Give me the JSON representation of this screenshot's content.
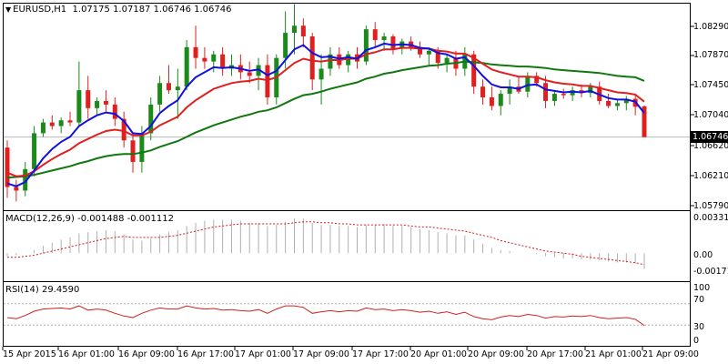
{
  "header": {
    "title": "EURUSD,H1",
    "ohlc": "1.07175 1.07187 1.06746 1.06746"
  },
  "price_axis": {
    "labels": [
      "1.08290",
      "1.07870",
      "1.07450",
      "1.07040",
      "1.06620",
      "1.06210",
      "1.05790"
    ],
    "current_price": "1.06746"
  },
  "macd": {
    "title": "MACD(12,26,9) -0.001488 -0.001112",
    "labels": [
      "0.003318",
      "0.00",
      "-0.001717"
    ]
  },
  "rsi": {
    "title": "RSI(14) 29.4590",
    "labels": [
      "100",
      "70",
      "30",
      "0"
    ]
  },
  "time_axis": {
    "labels": [
      "15 Apr 2015",
      "16 Apr 01:00",
      "16 Apr 09:00",
      "16 Apr 17:00",
      "17 Apr 01:00",
      "17 Apr 09:00",
      "17 Apr 17:00",
      "20 Apr 01:00",
      "20 Apr 09:00",
      "20 Apr 17:00",
      "21 Apr 01:00",
      "21 Apr 09:00"
    ]
  },
  "colors": {
    "bull_candle": "#1a8a1a",
    "bear_candle": "#e0201f",
    "ma_blue": "#1010e0",
    "ma_red": "#e02020",
    "ma_green": "#117711",
    "ma_thin": "#22aa22",
    "macd_hist": "#b0b0b0",
    "macd_signal": "#d02020",
    "rsi_line": "#d02020"
  },
  "chart_data": {
    "type": "candlestick",
    "symbol": "EURUSD",
    "timeframe": "H1",
    "candles": [
      {
        "o": 1.066,
        "h": 1.067,
        "l": 1.059,
        "c": 1.0605
      },
      {
        "o": 1.0605,
        "h": 1.0615,
        "l": 1.0585,
        "c": 1.06
      },
      {
        "o": 1.06,
        "h": 1.064,
        "l": 1.0592,
        "c": 1.063
      },
      {
        "o": 1.063,
        "h": 1.069,
        "l": 1.062,
        "c": 1.068
      },
      {
        "o": 1.068,
        "h": 1.07,
        "l": 1.0675,
        "c": 1.0695
      },
      {
        "o": 1.0695,
        "h": 1.0705,
        "l": 1.0685,
        "c": 1.069
      },
      {
        "o": 1.069,
        "h": 1.0702,
        "l": 1.068,
        "c": 1.0698
      },
      {
        "o": 1.0698,
        "h": 1.071,
        "l": 1.069,
        "c": 1.0695
      },
      {
        "o": 1.0695,
        "h": 1.078,
        "l": 1.069,
        "c": 1.074
      },
      {
        "o": 1.074,
        "h": 1.076,
        "l": 1.07,
        "c": 1.0715
      },
      {
        "o": 1.0715,
        "h": 1.073,
        "l": 1.0705,
        "c": 1.0725
      },
      {
        "o": 1.0725,
        "h": 1.074,
        "l": 1.071,
        "c": 1.072
      },
      {
        "o": 1.072,
        "h": 1.073,
        "l": 1.069,
        "c": 1.07
      },
      {
        "o": 1.07,
        "h": 1.071,
        "l": 1.066,
        "c": 1.067
      },
      {
        "o": 1.067,
        "h": 1.068,
        "l": 1.0625,
        "c": 1.064
      },
      {
        "o": 1.064,
        "h": 1.069,
        "l": 1.0625,
        "c": 1.068
      },
      {
        "o": 1.068,
        "h": 1.073,
        "l": 1.067,
        "c": 1.072
      },
      {
        "o": 1.072,
        "h": 1.076,
        "l": 1.071,
        "c": 1.075
      },
      {
        "o": 1.075,
        "h": 1.0775,
        "l": 1.0735,
        "c": 1.074
      },
      {
        "o": 1.074,
        "h": 1.077,
        "l": 1.07,
        "c": 1.0745
      },
      {
        "o": 1.0745,
        "h": 1.081,
        "l": 1.074,
        "c": 1.08
      },
      {
        "o": 1.08,
        "h": 1.083,
        "l": 1.077,
        "c": 1.0785
      },
      {
        "o": 1.0785,
        "h": 1.08,
        "l": 1.077,
        "c": 1.078
      },
      {
        "o": 1.078,
        "h": 1.0795,
        "l": 1.0765,
        "c": 1.079
      },
      {
        "o": 1.079,
        "h": 1.08,
        "l": 1.076,
        "c": 1.077
      },
      {
        "o": 1.077,
        "h": 1.079,
        "l": 1.076,
        "c": 1.0775
      },
      {
        "o": 1.0775,
        "h": 1.079,
        "l": 1.0755,
        "c": 1.0765
      },
      {
        "o": 1.0765,
        "h": 1.078,
        "l": 1.075,
        "c": 1.076
      },
      {
        "o": 1.076,
        "h": 1.0785,
        "l": 1.074,
        "c": 1.0775
      },
      {
        "o": 1.0775,
        "h": 1.079,
        "l": 1.072,
        "c": 1.073
      },
      {
        "o": 1.073,
        "h": 1.079,
        "l": 1.072,
        "c": 1.0785
      },
      {
        "o": 1.0785,
        "h": 1.085,
        "l": 1.077,
        "c": 1.082
      },
      {
        "o": 1.082,
        "h": 1.086,
        "l": 1.079,
        "c": 1.083
      },
      {
        "o": 1.083,
        "h": 1.084,
        "l": 1.08,
        "c": 1.0815
      },
      {
        "o": 1.0815,
        "h": 1.082,
        "l": 1.074,
        "c": 1.0755
      },
      {
        "o": 1.0755,
        "h": 1.079,
        "l": 1.072,
        "c": 1.077
      },
      {
        "o": 1.077,
        "h": 1.08,
        "l": 1.076,
        "c": 1.079
      },
      {
        "o": 1.079,
        "h": 1.08,
        "l": 1.077,
        "c": 1.0775
      },
      {
        "o": 1.0775,
        "h": 1.0795,
        "l": 1.0765,
        "c": 1.079
      },
      {
        "o": 1.079,
        "h": 1.08,
        "l": 1.077,
        "c": 1.078
      },
      {
        "o": 1.078,
        "h": 1.083,
        "l": 1.0775,
        "c": 1.0825
      },
      {
        "o": 1.0825,
        "h": 1.0835,
        "l": 1.08,
        "c": 1.081
      },
      {
        "o": 1.081,
        "h": 1.082,
        "l": 1.0795,
        "c": 1.0815
      },
      {
        "o": 1.0815,
        "h": 1.0818,
        "l": 1.079,
        "c": 1.0798
      },
      {
        "o": 1.0798,
        "h": 1.0812,
        "l": 1.079,
        "c": 1.0808
      },
      {
        "o": 1.0808,
        "h": 1.0815,
        "l": 1.0795,
        "c": 1.08
      },
      {
        "o": 1.08,
        "h": 1.0808,
        "l": 1.0785,
        "c": 1.079
      },
      {
        "o": 1.079,
        "h": 1.08,
        "l": 1.0775,
        "c": 1.0795
      },
      {
        "o": 1.0795,
        "h": 1.08,
        "l": 1.077,
        "c": 1.0778
      },
      {
        "o": 1.0778,
        "h": 1.079,
        "l": 1.0765,
        "c": 1.0785
      },
      {
        "o": 1.0785,
        "h": 1.0795,
        "l": 1.076,
        "c": 1.077
      },
      {
        "o": 1.077,
        "h": 1.08,
        "l": 1.076,
        "c": 1.079
      },
      {
        "o": 1.079,
        "h": 1.0795,
        "l": 1.0735,
        "c": 1.0745
      },
      {
        "o": 1.0745,
        "h": 1.0755,
        "l": 1.072,
        "c": 1.073
      },
      {
        "o": 1.073,
        "h": 1.0745,
        "l": 1.0712,
        "c": 1.0718
      },
      {
        "o": 1.0718,
        "h": 1.074,
        "l": 1.0705,
        "c": 1.0735
      },
      {
        "o": 1.0735,
        "h": 1.0755,
        "l": 1.072,
        "c": 1.0745
      },
      {
        "o": 1.0745,
        "h": 1.076,
        "l": 1.0735,
        "c": 1.0738
      },
      {
        "o": 1.0738,
        "h": 1.0765,
        "l": 1.073,
        "c": 1.076
      },
      {
        "o": 1.076,
        "h": 1.0765,
        "l": 1.0745,
        "c": 1.075
      },
      {
        "o": 1.075,
        "h": 1.076,
        "l": 1.0715,
        "c": 1.0725
      },
      {
        "o": 1.0725,
        "h": 1.074,
        "l": 1.0718,
        "c": 1.0735
      },
      {
        "o": 1.0735,
        "h": 1.0742,
        "l": 1.0728,
        "c": 1.0733
      },
      {
        "o": 1.0733,
        "h": 1.0745,
        "l": 1.0725,
        "c": 1.074
      },
      {
        "o": 1.074,
        "h": 1.0748,
        "l": 1.073,
        "c": 1.0736
      },
      {
        "o": 1.0736,
        "h": 1.075,
        "l": 1.073,
        "c": 1.0745
      },
      {
        "o": 1.0745,
        "h": 1.0752,
        "l": 1.072,
        "c": 1.0725
      },
      {
        "o": 1.0725,
        "h": 1.0735,
        "l": 1.0715,
        "c": 1.0718
      },
      {
        "o": 1.0718,
        "h": 1.0728,
        "l": 1.0712,
        "c": 1.0722
      },
      {
        "o": 1.0722,
        "h": 1.0732,
        "l": 1.0712,
        "c": 1.0728
      },
      {
        "o": 1.0728,
        "h": 1.0735,
        "l": 1.0705,
        "c": 1.0717
      },
      {
        "o": 1.07175,
        "h": 1.07187,
        "l": 1.06746,
        "c": 1.06746
      }
    ],
    "ma_blue": [
      1.061,
      1.0606,
      1.0612,
      1.0628,
      1.0645,
      1.0658,
      1.0668,
      1.0675,
      1.069,
      1.0698,
      1.0705,
      1.0709,
      1.0707,
      1.0697,
      1.068,
      1.0679,
      1.069,
      1.0708,
      1.0718,
      1.0726,
      1.0745,
      1.0758,
      1.0765,
      1.0772,
      1.0771,
      1.0772,
      1.077,
      1.0767,
      1.0769,
      1.0761,
      1.0767,
      1.0782,
      1.0797,
      1.0803,
      1.0792,
      1.0786,
      1.0787,
      1.0784,
      1.0786,
      1.0784,
      1.0796,
      1.08,
      1.0805,
      1.0803,
      1.0804,
      1.0803,
      1.0799,
      1.0798,
      1.0792,
      1.079,
      1.0784,
      1.0786,
      1.0774,
      1.076,
      1.0748,
      1.0744,
      1.0744,
      1.0742,
      1.0747,
      1.0748,
      1.0741,
      1.0739,
      1.0737,
      1.0738,
      1.0737,
      1.0739,
      1.0734,
      1.0729,
      1.0727,
      1.0727,
      1.0724,
      1.0708
    ],
    "ma_red": [
      1.0625,
      1.062,
      1.0621,
      1.0627,
      1.0636,
      1.0644,
      1.0651,
      1.0657,
      1.0666,
      1.0672,
      1.0678,
      1.0683,
      1.0685,
      1.0683,
      1.0677,
      1.0677,
      1.0682,
      1.0691,
      1.0697,
      1.0703,
      1.0716,
      1.0726,
      1.0734,
      1.0742,
      1.0746,
      1.075,
      1.0752,
      1.0753,
      1.0756,
      1.0754,
      1.0758,
      1.0768,
      1.0778,
      1.0784,
      1.0781,
      1.078,
      1.0782,
      1.0782,
      1.0784,
      1.0784,
      1.079,
      1.0793,
      1.0797,
      1.0797,
      1.0799,
      1.0799,
      1.0798,
      1.0798,
      1.0795,
      1.0794,
      1.0791,
      1.0791,
      1.0785,
      1.0777,
      1.0769,
      1.0765,
      1.0762,
      1.0759,
      1.0759,
      1.0758,
      1.0754,
      1.0751,
      1.0749,
      1.0748,
      1.0746,
      1.0746,
      1.0743,
      1.074,
      1.0737,
      1.0736,
      1.0734,
      1.0724
    ],
    "ma_green": [
      1.0618,
      1.0619,
      1.062,
      1.0622,
      1.0625,
      1.0628,
      1.0631,
      1.0634,
      1.0638,
      1.0641,
      1.0645,
      1.0648,
      1.065,
      1.0651,
      1.0651,
      1.0653,
      1.0656,
      1.0661,
      1.0665,
      1.0669,
      1.0675,
      1.0681,
      1.0686,
      1.0691,
      1.0695,
      1.0699,
      1.0703,
      1.0706,
      1.071,
      1.0712,
      1.0716,
      1.0722,
      1.0728,
      1.0733,
      1.0735,
      1.0738,
      1.0742,
      1.0745,
      1.0748,
      1.0751,
      1.0756,
      1.0759,
      1.0763,
      1.0765,
      1.0768,
      1.077,
      1.0772,
      1.0774,
      1.0775,
      1.0777,
      1.0778,
      1.078,
      1.0779,
      1.0778,
      1.0776,
      1.0775,
      1.0774,
      1.0773,
      1.0773,
      1.0772,
      1.0771,
      1.0769,
      1.0768,
      1.0767,
      1.0766,
      1.0765,
      1.0764,
      1.0762,
      1.076,
      1.0759,
      1.0758,
      1.0753
    ],
    "macd_hist": [
      -0.0003,
      -0.0002,
      0.0,
      0.0003,
      0.0007,
      0.001,
      0.0013,
      0.0015,
      0.0019,
      0.002,
      0.0021,
      0.0022,
      0.0021,
      0.0018,
      0.0013,
      0.0012,
      0.0014,
      0.0018,
      0.002,
      0.0022,
      0.0026,
      0.0029,
      0.0031,
      0.0032,
      0.0032,
      0.0032,
      0.0031,
      0.0029,
      0.0029,
      0.0026,
      0.0027,
      0.003,
      0.0033,
      0.0033,
      0.0029,
      0.0027,
      0.0027,
      0.0026,
      0.0026,
      0.0025,
      0.0027,
      0.0027,
      0.0028,
      0.0026,
      0.0026,
      0.0025,
      0.0023,
      0.0022,
      0.002,
      0.0019,
      0.0017,
      0.0017,
      0.0013,
      0.0009,
      0.0005,
      0.0003,
      0.0002,
      0.0,
      0.0,
      -0.0001,
      -0.0003,
      -0.0004,
      -0.0005,
      -0.0005,
      -0.0006,
      -0.0006,
      -0.0007,
      -0.0008,
      -0.0009,
      -0.0009,
      -0.001,
      -0.0015
    ],
    "macd_signal": [
      -0.0004,
      -0.0004,
      -0.0003,
      -0.0002,
      0.0,
      0.0002,
      0.0004,
      0.0006,
      0.0008,
      0.001,
      0.0012,
      0.0014,
      0.0015,
      0.0016,
      0.0015,
      0.0015,
      0.0015,
      0.0015,
      0.0016,
      0.0017,
      0.0019,
      0.0021,
      0.0023,
      0.0025,
      0.0026,
      0.0027,
      0.0028,
      0.0028,
      0.0028,
      0.0028,
      0.0028,
      0.0028,
      0.0029,
      0.003,
      0.003,
      0.0029,
      0.0029,
      0.0028,
      0.0028,
      0.0027,
      0.0027,
      0.0027,
      0.0027,
      0.0027,
      0.0027,
      0.0026,
      0.0025,
      0.0025,
      0.0024,
      0.0023,
      0.0022,
      0.0021,
      0.0019,
      0.0017,
      0.0015,
      0.0012,
      0.001,
      0.0008,
      0.0006,
      0.0004,
      0.0002,
      0.0001,
      0.0,
      -0.0001,
      -0.0003,
      -0.0004,
      -0.0005,
      -0.0006,
      -0.0007,
      -0.0008,
      -0.0009,
      -0.0011
    ],
    "rsi": [
      44,
      42,
      48,
      56,
      60,
      61,
      62,
      60,
      66,
      58,
      60,
      58,
      52,
      47,
      44,
      52,
      58,
      62,
      60,
      60,
      66,
      62,
      60,
      61,
      58,
      59,
      57,
      56,
      59,
      52,
      60,
      66,
      66,
      63,
      52,
      55,
      57,
      55,
      57,
      56,
      62,
      59,
      60,
      57,
      59,
      57,
      54,
      56,
      52,
      55,
      50,
      54,
      46,
      42,
      40,
      45,
      48,
      46,
      50,
      48,
      43,
      46,
      45,
      47,
      46,
      48,
      44,
      42,
      43,
      44,
      41,
      29.459
    ],
    "macd_range": [
      -0.002,
      0.0036
    ],
    "price_range": [
      1.057,
      1.085
    ]
  }
}
